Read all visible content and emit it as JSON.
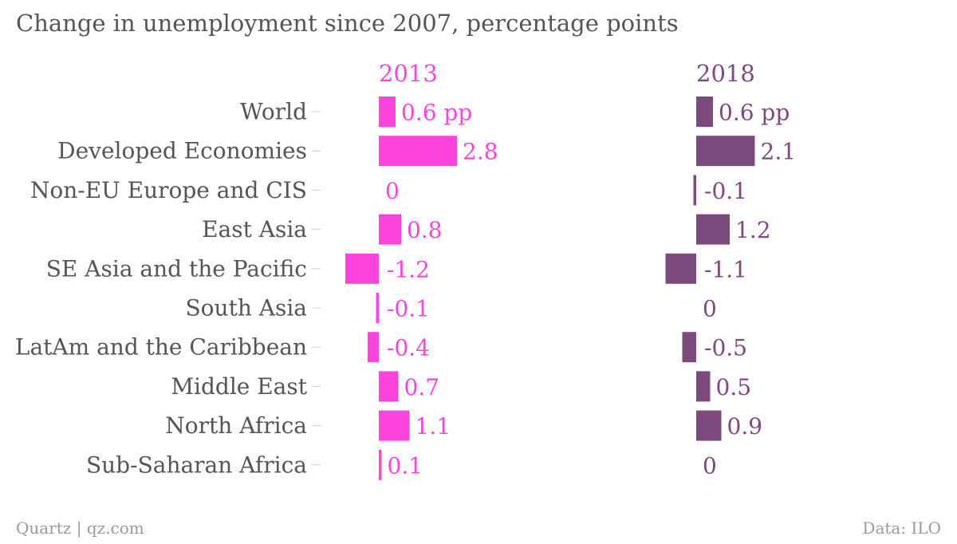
{
  "title": "Change in unemployment since 2007, percentage points",
  "footer": {
    "source_left": "Quartz | qz.com",
    "source_right": "Data: ILO"
  },
  "chart_data": {
    "type": "bar",
    "orientation": "horizontal",
    "title": "Change in unemployment since 2007, percentage points",
    "categories": [
      "World",
      "Developed Economies",
      "Non-EU Europe and CIS",
      "East Asia",
      "SE Asia and the Pacific",
      "South Asia",
      "LatAm and the Caribbean",
      "Middle East",
      "North Africa",
      "Sub-Saharan Africa"
    ],
    "series": [
      {
        "name": "2013",
        "color": "#ff44dd",
        "values": [
          0.6,
          2.8,
          0,
          0.8,
          -1.2,
          -0.1,
          -0.4,
          0.7,
          1.1,
          0.1
        ],
        "labels": [
          "0.6 pp",
          "2.8",
          "0",
          "0.8",
          "-1.2",
          "-0.1",
          "-0.4",
          "0.7",
          "1.1",
          "0.1"
        ]
      },
      {
        "name": "2018",
        "color": "#7d4a7d",
        "values": [
          0.6,
          2.1,
          -0.1,
          1.2,
          -1.1,
          0,
          -0.5,
          0.5,
          0.9,
          0
        ],
        "labels": [
          "0.6 pp",
          "2.1",
          "-0.1",
          "1.2",
          "-1.1",
          "0",
          "-0.5",
          "0.5",
          "0.9",
          "0"
        ]
      }
    ],
    "grid": false,
    "legend": "none"
  }
}
